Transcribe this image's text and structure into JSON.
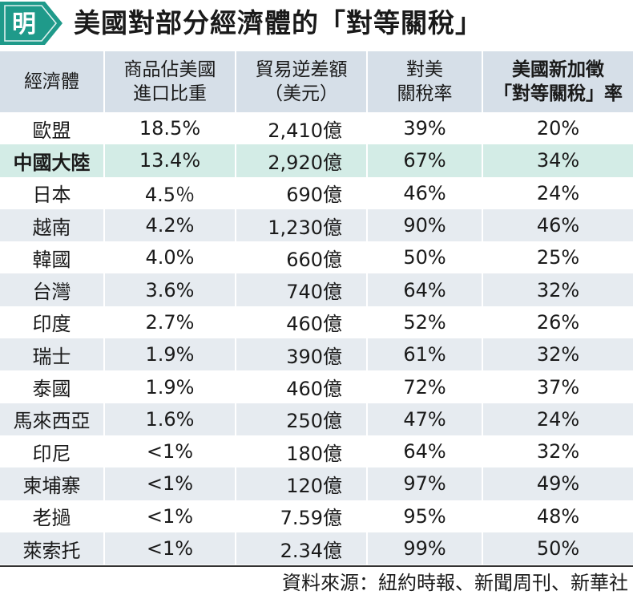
{
  "logo": {
    "glyph": "明",
    "shape": "hexagon-badge",
    "color": "#1f9a8a"
  },
  "title": "美國對部分經濟體的「對等關稅」",
  "table": {
    "headers": [
      {
        "lines": [
          "經濟體"
        ]
      },
      {
        "lines": [
          "商品佔美國",
          "進口比重"
        ]
      },
      {
        "lines": [
          "貿易逆差額",
          "（美元）"
        ]
      },
      {
        "lines": [
          "對美",
          "關稅率"
        ]
      },
      {
        "lines": [
          "美國新加徵",
          "「對等關稅」率"
        ]
      }
    ],
    "rows": [
      {
        "country": "歐盟",
        "share": "18.5%",
        "deficit": "2,410億",
        "tariff": "39%",
        "new_tariff": "20%"
      },
      {
        "country": "中國大陸",
        "share": "13.4%",
        "deficit": "2,920億",
        "tariff": "67%",
        "new_tariff": "34%"
      },
      {
        "country": "日本",
        "share": "4.5％",
        "deficit": "690億",
        "tariff": "46%",
        "new_tariff": "24%"
      },
      {
        "country": "越南",
        "share": "4.2%",
        "deficit": "1,230億",
        "tariff": "90%",
        "new_tariff": "46%"
      },
      {
        "country": "韓國",
        "share": "4.0%",
        "deficit": "660億",
        "tariff": "50%",
        "new_tariff": "25%"
      },
      {
        "country": "台灣",
        "share": "3.6%",
        "deficit": "740億",
        "tariff": "64%",
        "new_tariff": "32%"
      },
      {
        "country": "印度",
        "share": "2.7%",
        "deficit": "460億",
        "tariff": "52%",
        "new_tariff": "26%"
      },
      {
        "country": "瑞士",
        "share": "1.9%",
        "deficit": "390億",
        "tariff": "61%",
        "new_tariff": "32%"
      },
      {
        "country": "泰國",
        "share": "1.9%",
        "deficit": "460億",
        "tariff": "72%",
        "new_tariff": "37%"
      },
      {
        "country": "馬來西亞",
        "share": "1.6%",
        "deficit": "250億",
        "tariff": "47%",
        "new_tariff": "24%"
      },
      {
        "country": "印尼",
        "share": "<1%",
        "deficit": "180億",
        "tariff": "64%",
        "new_tariff": "32%"
      },
      {
        "country": "柬埔寨",
        "share": "<1%",
        "deficit": "120億",
        "tariff": "97%",
        "new_tariff": "49%"
      },
      {
        "country": "老撾",
        "share": "<1%",
        "deficit": "7.59億",
        "tariff": "95%",
        "new_tariff": "48%"
      },
      {
        "country": "萊索托",
        "share": "<1%",
        "deficit": "2.34億",
        "tariff": "99%",
        "new_tariff": "50%"
      }
    ],
    "highlight_row": 1,
    "colors": {
      "header_bg": "#d6dfe8",
      "alt_row_bg": "#e6ebf0",
      "highlight_bg": "#d3ece6"
    }
  },
  "source": "資料來源：紐約時報、新聞周刊、新華社"
}
